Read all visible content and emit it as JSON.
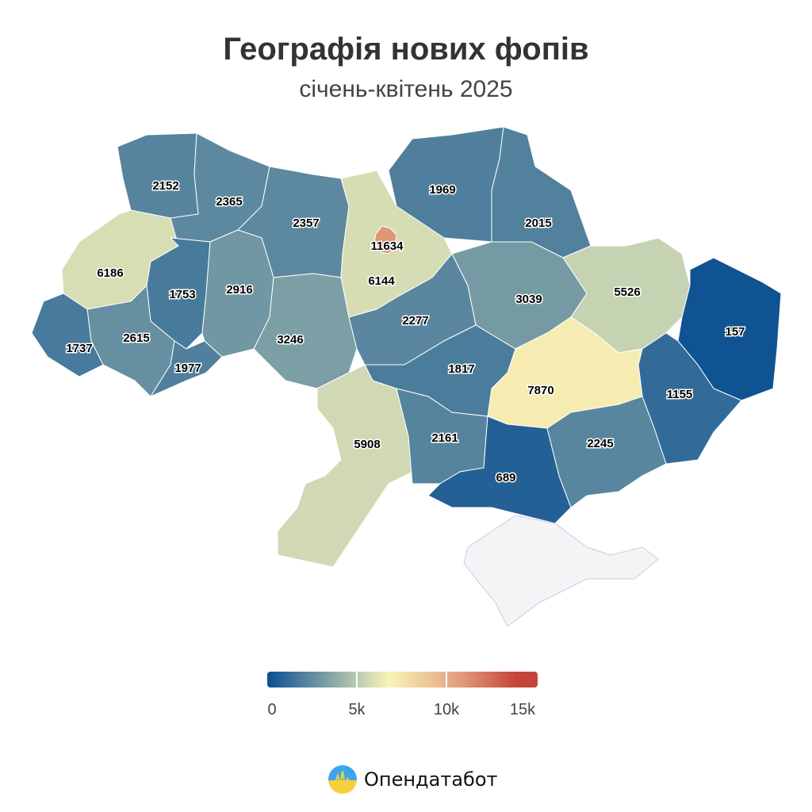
{
  "header": {
    "title": "Географія нових фопів",
    "subtitle": "січень-квітень 2025"
  },
  "map": {
    "regions": [
      {
        "value": 2152
      },
      {
        "value": 2365
      },
      {
        "value": 2357
      },
      {
        "value": 6144
      },
      {
        "value": 11634
      },
      {
        "value": 1969
      },
      {
        "value": 2015
      },
      {
        "value": 6186
      },
      {
        "value": 1753
      },
      {
        "value": 2916
      },
      {
        "value": 3246
      },
      {
        "value": 2615
      },
      {
        "value": 1737
      },
      {
        "value": 1977
      },
      {
        "value": 2277
      },
      {
        "value": 3039
      },
      {
        "value": 5526
      },
      {
        "value": 157
      },
      {
        "value": 1155
      },
      {
        "value": 7870
      },
      {
        "value": 1817
      },
      {
        "value": 5908
      },
      {
        "value": 2161
      },
      {
        "value": 689
      },
      {
        "value": 2245
      },
      {
        "value": null
      }
    ],
    "no_data_color": "#f4f4f6",
    "border_color": "#c8cde0"
  },
  "legend": {
    "min": 0,
    "max": 15000,
    "ticks": [
      "0",
      "5k",
      "10k",
      "15k"
    ],
    "colors": [
      "#0b4f91",
      "#b9cab0",
      "#f8f4b8",
      "#e9b28a",
      "#c4453a"
    ]
  },
  "footer": {
    "brand": "Опендатабот"
  }
}
